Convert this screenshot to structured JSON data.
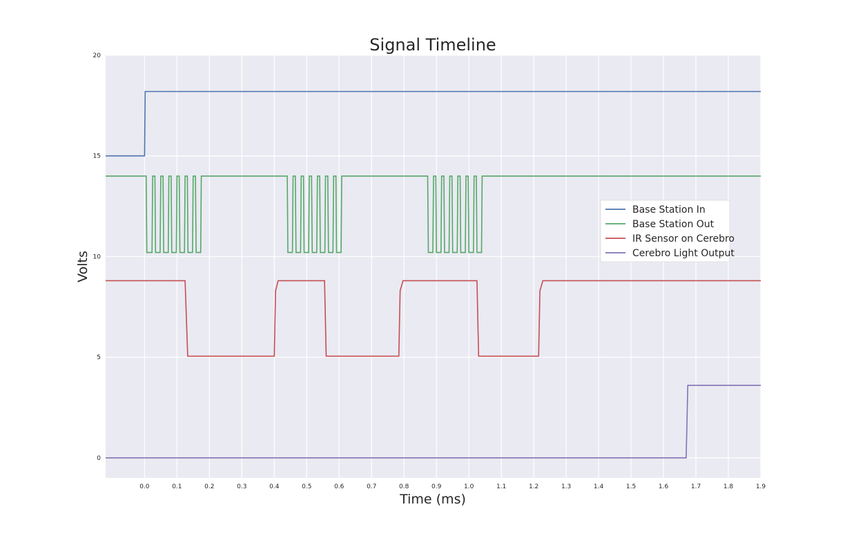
{
  "chart_data": {
    "type": "line",
    "title": "Signal Timeline",
    "xlabel": "Time (ms)",
    "ylabel": "Volts",
    "xlim": [
      -0.12,
      1.9
    ],
    "ylim": [
      -1,
      20
    ],
    "x_ticks": [
      "0.0",
      "0.1",
      "0.2",
      "0.3",
      "0.4",
      "0.5",
      "0.6",
      "0.7",
      "0.8",
      "0.9",
      "1.0",
      "1.1",
      "1.2",
      "1.3",
      "1.4",
      "1.5",
      "1.6",
      "1.7",
      "1.8",
      "1.9"
    ],
    "y_ticks": [
      "0",
      "5",
      "10",
      "15",
      "20"
    ],
    "grid": true,
    "legend_position": "center-right",
    "series": [
      {
        "name": "Base Station In",
        "color": "#4c72b0",
        "points": [
          [
            -0.12,
            15.0
          ],
          [
            0.0,
            15.0
          ],
          [
            0.002,
            18.2
          ],
          [
            1.9,
            18.2
          ]
        ]
      },
      {
        "name": "Base Station Out",
        "color": "#55a868",
        "points": [
          [
            -0.12,
            14.0
          ],
          [
            0.005,
            14.0
          ],
          [
            0.007,
            10.2
          ],
          [
            0.023,
            10.2
          ],
          [
            0.025,
            14.0
          ],
          [
            0.032,
            14.0
          ],
          [
            0.034,
            10.2
          ],
          [
            0.048,
            10.2
          ],
          [
            0.05,
            14.0
          ],
          [
            0.057,
            14.0
          ],
          [
            0.059,
            10.2
          ],
          [
            0.073,
            10.2
          ],
          [
            0.075,
            14.0
          ],
          [
            0.082,
            14.0
          ],
          [
            0.084,
            10.2
          ],
          [
            0.098,
            10.2
          ],
          [
            0.1,
            14.0
          ],
          [
            0.107,
            14.0
          ],
          [
            0.109,
            10.2
          ],
          [
            0.123,
            10.2
          ],
          [
            0.125,
            14.0
          ],
          [
            0.132,
            14.0
          ],
          [
            0.134,
            10.2
          ],
          [
            0.148,
            10.2
          ],
          [
            0.15,
            14.0
          ],
          [
            0.157,
            14.0
          ],
          [
            0.159,
            10.2
          ],
          [
            0.173,
            10.2
          ],
          [
            0.175,
            14.0
          ],
          [
            0.44,
            14.0
          ],
          [
            0.442,
            10.2
          ],
          [
            0.456,
            10.2
          ],
          [
            0.458,
            14.0
          ],
          [
            0.465,
            14.0
          ],
          [
            0.467,
            10.2
          ],
          [
            0.481,
            10.2
          ],
          [
            0.483,
            14.0
          ],
          [
            0.49,
            14.0
          ],
          [
            0.492,
            10.2
          ],
          [
            0.506,
            10.2
          ],
          [
            0.508,
            14.0
          ],
          [
            0.515,
            14.0
          ],
          [
            0.517,
            10.2
          ],
          [
            0.531,
            10.2
          ],
          [
            0.533,
            14.0
          ],
          [
            0.54,
            14.0
          ],
          [
            0.542,
            10.2
          ],
          [
            0.556,
            10.2
          ],
          [
            0.558,
            14.0
          ],
          [
            0.565,
            14.0
          ],
          [
            0.567,
            10.2
          ],
          [
            0.581,
            10.2
          ],
          [
            0.583,
            14.0
          ],
          [
            0.59,
            14.0
          ],
          [
            0.592,
            10.2
          ],
          [
            0.606,
            10.2
          ],
          [
            0.608,
            14.0
          ],
          [
            0.873,
            14.0
          ],
          [
            0.875,
            10.2
          ],
          [
            0.889,
            10.2
          ],
          [
            0.891,
            14.0
          ],
          [
            0.898,
            14.0
          ],
          [
            0.9,
            10.2
          ],
          [
            0.914,
            10.2
          ],
          [
            0.916,
            14.0
          ],
          [
            0.923,
            14.0
          ],
          [
            0.925,
            10.2
          ],
          [
            0.939,
            10.2
          ],
          [
            0.941,
            14.0
          ],
          [
            0.948,
            14.0
          ],
          [
            0.95,
            10.2
          ],
          [
            0.964,
            10.2
          ],
          [
            0.966,
            14.0
          ],
          [
            0.973,
            14.0
          ],
          [
            0.975,
            10.2
          ],
          [
            0.989,
            10.2
          ],
          [
            0.991,
            14.0
          ],
          [
            0.998,
            14.0
          ],
          [
            1.0,
            10.2
          ],
          [
            1.014,
            10.2
          ],
          [
            1.016,
            14.0
          ],
          [
            1.023,
            14.0
          ],
          [
            1.025,
            10.2
          ],
          [
            1.039,
            10.2
          ],
          [
            1.041,
            14.0
          ],
          [
            1.9,
            14.0
          ]
        ]
      },
      {
        "name": "IR Sensor on Cerebro",
        "color": "#c44e52",
        "points": [
          [
            -0.12,
            8.8
          ],
          [
            0.125,
            8.8
          ],
          [
            0.133,
            5.05
          ],
          [
            0.4,
            5.05
          ],
          [
            0.404,
            8.3
          ],
          [
            0.412,
            8.8
          ],
          [
            0.555,
            8.8
          ],
          [
            0.56,
            5.05
          ],
          [
            0.784,
            5.05
          ],
          [
            0.788,
            8.3
          ],
          [
            0.797,
            8.8
          ],
          [
            1.025,
            8.8
          ],
          [
            1.03,
            5.05
          ],
          [
            1.215,
            5.05
          ],
          [
            1.219,
            8.3
          ],
          [
            1.228,
            8.8
          ],
          [
            1.9,
            8.8
          ]
        ]
      },
      {
        "name": "Cerebro Light Output",
        "color": "#8172b2",
        "points": [
          [
            -0.12,
            0.0
          ],
          [
            1.67,
            0.0
          ],
          [
            1.675,
            3.6
          ],
          [
            1.9,
            3.6
          ]
        ]
      }
    ]
  }
}
